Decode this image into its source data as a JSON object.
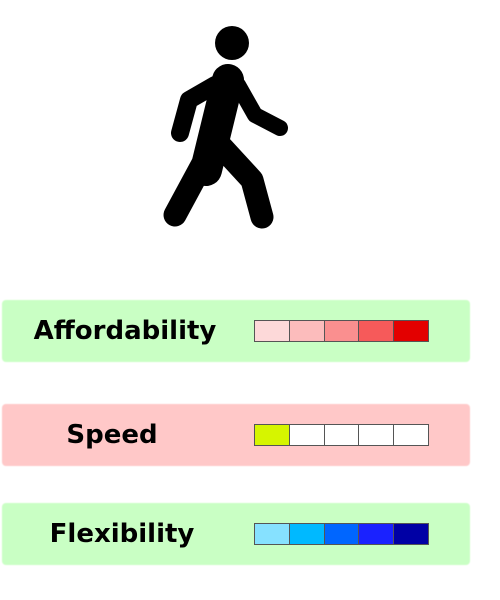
{
  "icon": "pedestrian-walking-icon",
  "ratings": [
    {
      "label": "Affordability",
      "background": "#c9ffc4",
      "level": 5,
      "max": 5,
      "cells": [
        "#fdd9d9",
        "#fcbcbc",
        "#fa8f8f",
        "#f65a5a",
        "#e30000"
      ]
    },
    {
      "label": "Speed",
      "background": "#ffc8c8",
      "level": 1,
      "max": 5,
      "cells": [
        "#d6f500",
        "#ffffff",
        "#ffffff",
        "#ffffff",
        "#ffffff"
      ]
    },
    {
      "label": "Flexibility",
      "background": "#c9ffc4",
      "level": 5,
      "max": 5,
      "cells": [
        "#86e1ff",
        "#00b9ff",
        "#0066ff",
        "#1a22ff",
        "#0000a5"
      ]
    }
  ]
}
